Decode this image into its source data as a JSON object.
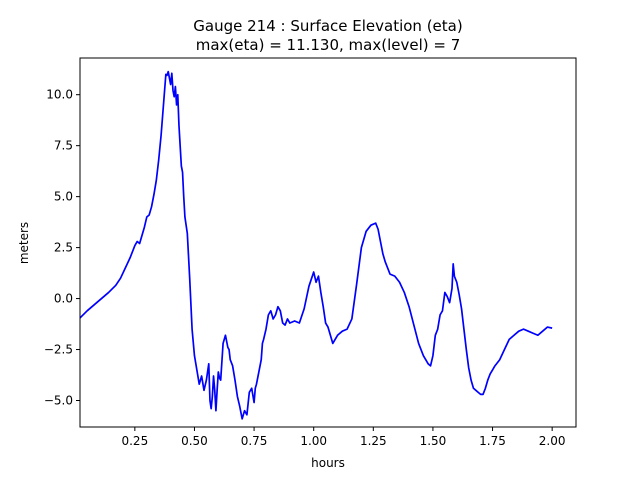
{
  "chart_data": {
    "type": "line",
    "title": "Gauge 214 : Surface Elevation (eta)",
    "subtitle": "max(eta) =  11.130,    max(level) = 7",
    "xlabel": "hours",
    "ylabel": "meters",
    "xlim": [
      0.02,
      2.1
    ],
    "ylim": [
      -6.3,
      11.8
    ],
    "xticks": [
      0.25,
      0.5,
      0.75,
      1.0,
      1.25,
      1.5,
      1.75,
      2.0
    ],
    "xtick_labels": [
      "0.25",
      "0.50",
      "0.75",
      "1.00",
      "1.25",
      "1.50",
      "1.75",
      "2.00"
    ],
    "yticks": [
      -5.0,
      -2.5,
      0.0,
      2.5,
      5.0,
      7.5,
      10.0
    ],
    "ytick_labels": [
      "−5.0",
      "−2.5",
      "0.0",
      "2.5",
      "5.0",
      "7.5",
      "10.0"
    ],
    "grid": false,
    "legend": "none",
    "series": [
      {
        "color": "#0000ff",
        "x": [
          0.02,
          0.05,
          0.08,
          0.11,
          0.14,
          0.17,
          0.19,
          0.21,
          0.23,
          0.25,
          0.26,
          0.27,
          0.28,
          0.29,
          0.3,
          0.31,
          0.32,
          0.33,
          0.34,
          0.35,
          0.36,
          0.37,
          0.38,
          0.385,
          0.39,
          0.4,
          0.405,
          0.41,
          0.415,
          0.42,
          0.425,
          0.43,
          0.435,
          0.44,
          0.445,
          0.45,
          0.455,
          0.46,
          0.47,
          0.48,
          0.49,
          0.5,
          0.51,
          0.52,
          0.53,
          0.54,
          0.55,
          0.56,
          0.565,
          0.57,
          0.575,
          0.58,
          0.585,
          0.59,
          0.595,
          0.6,
          0.605,
          0.61,
          0.62,
          0.63,
          0.64,
          0.645,
          0.65,
          0.66,
          0.67,
          0.68,
          0.69,
          0.7,
          0.71,
          0.72,
          0.73,
          0.74,
          0.75,
          0.755,
          0.76,
          0.77,
          0.78,
          0.785,
          0.79,
          0.8,
          0.81,
          0.82,
          0.83,
          0.84,
          0.85,
          0.86,
          0.87,
          0.88,
          0.89,
          0.9,
          0.92,
          0.94,
          0.96,
          0.98,
          1.0,
          1.01,
          1.02,
          1.03,
          1.04,
          1.05,
          1.06,
          1.08,
          1.1,
          1.12,
          1.14,
          1.16,
          1.18,
          1.2,
          1.22,
          1.24,
          1.26,
          1.27,
          1.28,
          1.29,
          1.3,
          1.31,
          1.32,
          1.34,
          1.36,
          1.38,
          1.4,
          1.42,
          1.44,
          1.46,
          1.48,
          1.49,
          1.5,
          1.51,
          1.52,
          1.53,
          1.54,
          1.55,
          1.56,
          1.57,
          1.58,
          1.585,
          1.59,
          1.6,
          1.61,
          1.62,
          1.63,
          1.64,
          1.65,
          1.66,
          1.67,
          1.68,
          1.69,
          1.7,
          1.71,
          1.72,
          1.73,
          1.74,
          1.75,
          1.76,
          1.78,
          1.8,
          1.82,
          1.84,
          1.86,
          1.88,
          1.9,
          1.92,
          1.94,
          1.96,
          1.98,
          2.0
        ],
        "y": [
          -0.95,
          -0.6,
          -0.3,
          0.0,
          0.3,
          0.65,
          1.0,
          1.5,
          2.0,
          2.6,
          2.8,
          2.7,
          3.1,
          3.5,
          4.0,
          4.1,
          4.5,
          5.1,
          5.8,
          6.8,
          8.0,
          9.5,
          11.0,
          10.95,
          11.13,
          10.5,
          11.05,
          10.2,
          9.9,
          10.4,
          9.5,
          10.0,
          8.5,
          7.5,
          6.5,
          6.2,
          5.0,
          4.0,
          3.2,
          1.0,
          -1.5,
          -2.8,
          -3.5,
          -4.2,
          -3.8,
          -4.5,
          -4.0,
          -3.2,
          -5.0,
          -5.4,
          -4.8,
          -3.8,
          -4.5,
          -5.5,
          -4.5,
          -3.6,
          -3.9,
          -4.0,
          -2.2,
          -1.8,
          -2.4,
          -2.5,
          -3.0,
          -3.3,
          -4.0,
          -4.8,
          -5.3,
          -5.9,
          -5.5,
          -5.7,
          -4.6,
          -4.4,
          -5.1,
          -4.4,
          -4.2,
          -3.6,
          -3.0,
          -2.2,
          -2.0,
          -1.5,
          -0.8,
          -0.6,
          -1.0,
          -0.8,
          -0.4,
          -0.6,
          -1.2,
          -1.3,
          -1.0,
          -1.2,
          -1.1,
          -1.2,
          -0.5,
          0.6,
          1.3,
          0.8,
          1.1,
          0.3,
          -0.4,
          -1.2,
          -1.4,
          -2.2,
          -1.8,
          -1.6,
          -1.5,
          -1.0,
          0.7,
          2.5,
          3.3,
          3.6,
          3.7,
          3.4,
          2.8,
          2.2,
          1.8,
          1.5,
          1.2,
          1.1,
          0.8,
          0.3,
          -0.4,
          -1.3,
          -2.2,
          -2.8,
          -3.2,
          -3.3,
          -2.8,
          -1.8,
          -1.5,
          -0.8,
          -0.6,
          0.3,
          0.1,
          -0.2,
          0.5,
          1.7,
          1.1,
          0.8,
          0.2,
          -0.5,
          -1.5,
          -2.5,
          -3.4,
          -4.0,
          -4.4,
          -4.5,
          -4.6,
          -4.7,
          -4.7,
          -4.4,
          -4.0,
          -3.7,
          -3.5,
          -3.3,
          -3.0,
          -2.5,
          -2.0,
          -1.8,
          -1.6,
          -1.5,
          -1.6,
          -1.7,
          -1.8,
          -1.6,
          -1.4,
          -1.45
        ]
      }
    ]
  }
}
